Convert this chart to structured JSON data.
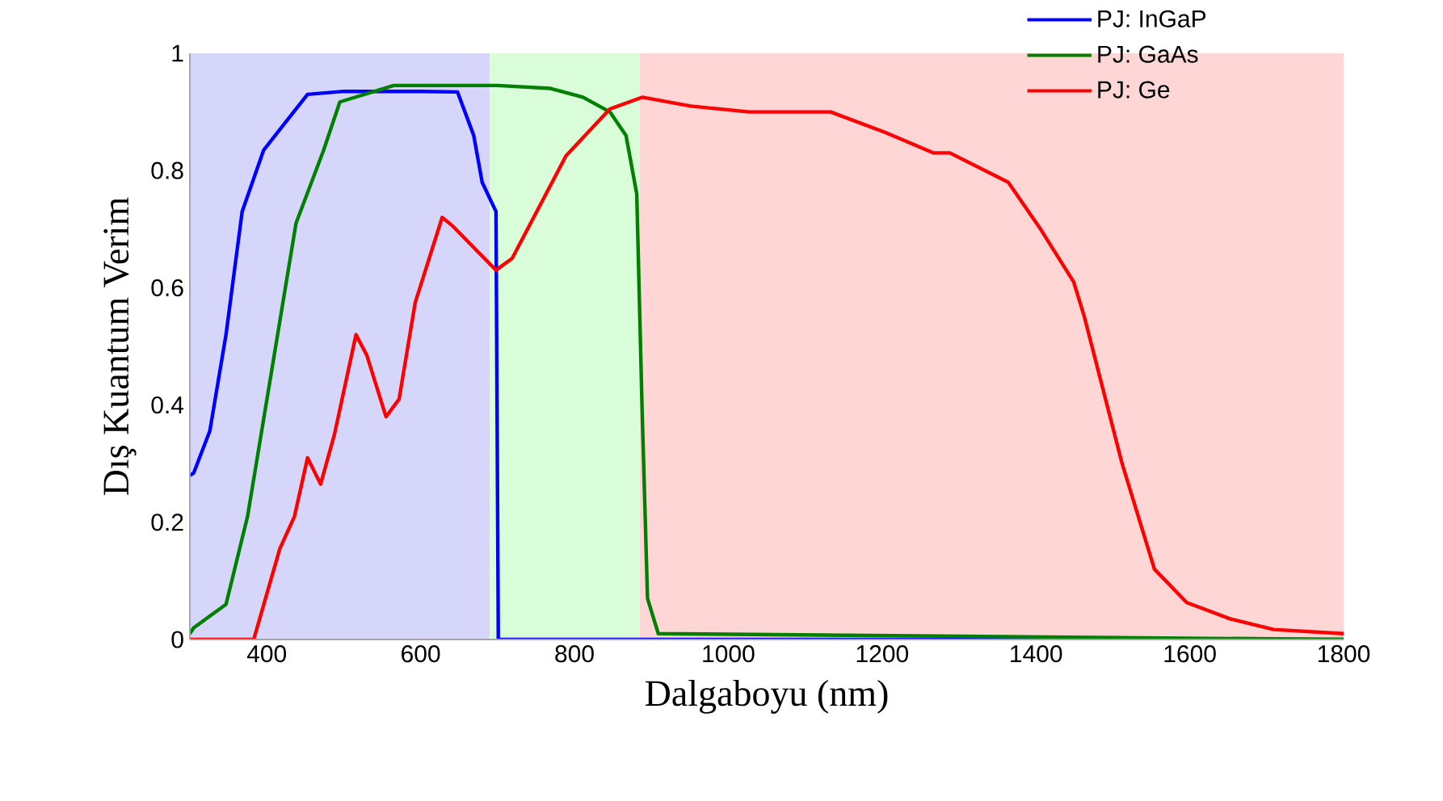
{
  "chart_data": {
    "type": "line",
    "xlabel": "Dalgaboyu (nm)",
    "ylabel": "Dış Kuantum Verim",
    "xlim": [
      300,
      1800
    ],
    "ylim": [
      0,
      1
    ],
    "xticks": [
      400,
      600,
      800,
      1000,
      1200,
      1400,
      1600,
      1800
    ],
    "yticks": [
      0,
      {
        "value": 0.2,
        "label": "0.2"
      },
      {
        "value": 0.4,
        "label": "0.4"
      },
      {
        "value": 0.6,
        "label": "0.6"
      },
      {
        "value": 0.8,
        "label": "0.8"
      },
      1
    ],
    "grid": false,
    "legend": "top right",
    "line_style": "solid",
    "marker": "none",
    "bands": [
      {
        "axis": "x",
        "from": 300,
        "to": 690,
        "color": "#d6d6fa"
      },
      {
        "axis": "x",
        "from": 690,
        "to": 885,
        "color": "#d9fcd9"
      },
      {
        "axis": "x",
        "from": 885,
        "to": 1800,
        "color": "#ffd6d6"
      }
    ],
    "series": [
      {
        "name": "PJ: InGaP",
        "color": "#0000ff",
        "x": [
          300,
          305,
          326,
          347,
          368,
          396,
          417,
          453,
          500,
          600,
          648,
          669,
          680,
          698,
          701,
          1800
        ],
        "values": [
          0.28,
          0.284,
          0.356,
          0.52,
          0.73,
          0.835,
          0.87,
          0.93,
          0.935,
          0.935,
          0.934,
          0.86,
          0.78,
          0.73,
          0,
          0
        ]
      },
      {
        "name": "PJ: GaAs",
        "color": "#008000",
        "x": [
          300,
          305,
          347,
          375,
          404,
          438,
          474,
          495,
          565,
          700,
          769,
          811,
          846,
          867,
          881,
          888,
          895,
          909,
          1800
        ],
        "values": [
          0.01,
          0.02,
          0.06,
          0.21,
          0.44,
          0.71,
          0.835,
          0.917,
          0.945,
          0.945,
          0.94,
          0.925,
          0.9,
          0.86,
          0.76,
          0.39,
          0.07,
          0.01,
          0
        ]
      },
      {
        "name": "PJ: Ge",
        "color": "#ff0000",
        "x": [
          300,
          383,
          417,
          436,
          453,
          470,
          488,
          516,
          530,
          555,
          572,
          593,
          628,
          642,
          698,
          719,
          789,
          846,
          888,
          951,
          1027,
          1133,
          1204,
          1267,
          1288,
          1364,
          1406,
          1449,
          1463,
          1512,
          1554,
          1596,
          1653,
          1709,
          1800
        ],
        "values": [
          0,
          0,
          0.155,
          0.21,
          0.31,
          0.265,
          0.35,
          0.52,
          0.485,
          0.38,
          0.41,
          0.575,
          0.72,
          0.705,
          0.63,
          0.65,
          0.825,
          0.905,
          0.925,
          0.91,
          0.9,
          0.9,
          0.865,
          0.83,
          0.83,
          0.78,
          0.7,
          0.61,
          0.55,
          0.3,
          0.12,
          0.063,
          0.035,
          0.017,
          0.01
        ]
      }
    ]
  }
}
